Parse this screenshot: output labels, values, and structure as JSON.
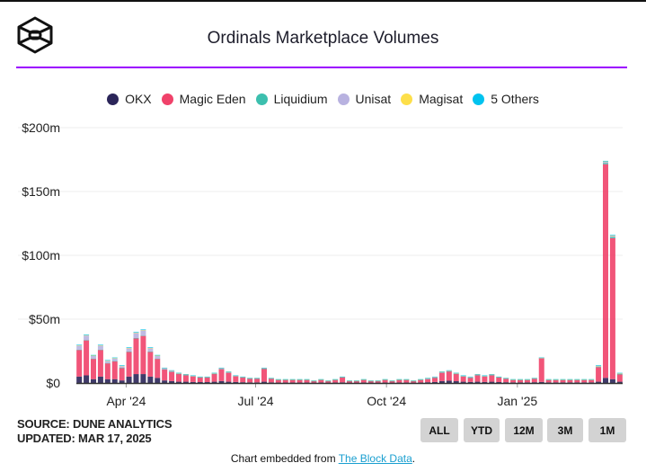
{
  "header": {
    "title": "Ordinals Marketplace Volumes",
    "logo_icon": "the-block-cube-logo",
    "accent_rule_color": "#9b00ff"
  },
  "legend": [
    {
      "label": "OKX",
      "color": "#2b2559"
    },
    {
      "label": "Magic Eden",
      "color": "#f0426a"
    },
    {
      "label": "Liquidium",
      "color": "#3cbfae"
    },
    {
      "label": "Unisat",
      "color": "#b8b2e0"
    },
    {
      "label": "Magisat",
      "color": "#fddf4a"
    },
    {
      "label": "5 Others",
      "color": "#00c3ef"
    }
  ],
  "source": {
    "line1": "SOURCE: DUNE ANALYTICS",
    "line2": "UPDATED: MAR 17, 2025"
  },
  "range_buttons": [
    "ALL",
    "YTD",
    "12M",
    "3M",
    "1M"
  ],
  "footer": {
    "prefix": "Chart embedded from ",
    "link": "The Block Data",
    "suffix": "."
  },
  "chart_data": {
    "type": "bar",
    "stacked": true,
    "title": "Ordinals Marketplace Volumes",
    "xlabel": "",
    "ylabel": "",
    "ylim": [
      0,
      200
    ],
    "y_unit": "$m",
    "y_ticks": [
      {
        "value": 0,
        "label": "$0"
      },
      {
        "value": 50,
        "label": "$50m"
      },
      {
        "value": 100,
        "label": "$100m"
      },
      {
        "value": 150,
        "label": "$150m"
      },
      {
        "value": 200,
        "label": "$200m"
      }
    ],
    "x_ticks": [
      {
        "date": "2024-04-01",
        "label": "Apr '24"
      },
      {
        "date": "2024-07-01",
        "label": "Jul '24"
      },
      {
        "date": "2024-10-01",
        "label": "Oct '24"
      },
      {
        "date": "2025-01-01",
        "label": "Jan '25"
      }
    ],
    "xlim": [
      "2024-02-26",
      "2025-03-16"
    ],
    "grid": true,
    "legend_position": "top",
    "x": [
      "2024-02-28",
      "2024-03-04",
      "2024-03-09",
      "2024-03-14",
      "2024-03-19",
      "2024-03-24",
      "2024-03-29",
      "2024-04-03",
      "2024-04-08",
      "2024-04-13",
      "2024-04-18",
      "2024-04-23",
      "2024-04-28",
      "2024-05-03",
      "2024-05-08",
      "2024-05-13",
      "2024-05-18",
      "2024-05-23",
      "2024-05-28",
      "2024-06-02",
      "2024-06-07",
      "2024-06-12",
      "2024-06-17",
      "2024-06-22",
      "2024-06-27",
      "2024-07-02",
      "2024-07-07",
      "2024-07-12",
      "2024-07-17",
      "2024-07-22",
      "2024-07-27",
      "2024-08-01",
      "2024-08-06",
      "2024-08-11",
      "2024-08-16",
      "2024-08-21",
      "2024-08-26",
      "2024-08-31",
      "2024-09-05",
      "2024-09-10",
      "2024-09-15",
      "2024-09-20",
      "2024-09-25",
      "2024-09-30",
      "2024-10-05",
      "2024-10-10",
      "2024-10-15",
      "2024-10-20",
      "2024-10-25",
      "2024-10-30",
      "2024-11-04",
      "2024-11-09",
      "2024-11-14",
      "2024-11-19",
      "2024-11-24",
      "2024-11-29",
      "2024-12-04",
      "2024-12-09",
      "2024-12-14",
      "2024-12-19",
      "2024-12-24",
      "2024-12-29",
      "2025-01-03",
      "2025-01-08",
      "2025-01-13",
      "2025-01-18",
      "2025-01-23",
      "2025-01-28",
      "2025-02-02",
      "2025-02-07",
      "2025-02-12",
      "2025-02-17",
      "2025-02-22",
      "2025-02-27",
      "2025-03-04",
      "2025-03-09",
      "2025-03-14"
    ],
    "series": [
      {
        "name": "OKX",
        "color": "#2b2559",
        "values": [
          5,
          6,
          3,
          5,
          3,
          3,
          2,
          5,
          7,
          7,
          5,
          4,
          2,
          1.5,
          1,
          1,
          0.8,
          0.7,
          0.7,
          1,
          1.5,
          1,
          0.8,
          0.6,
          0.5,
          0.5,
          1,
          0.5,
          0.4,
          0.4,
          0.4,
          0.4,
          0.4,
          0.3,
          0.4,
          0.3,
          0.4,
          0.5,
          0.3,
          0.3,
          0.4,
          0.3,
          0.3,
          0.4,
          0.3,
          0.4,
          0.4,
          0.3,
          0.4,
          0.6,
          0.8,
          1.5,
          1.8,
          1.4,
          1,
          0.8,
          1,
          0.8,
          1,
          0.7,
          0.6,
          0.5,
          0.5,
          0.5,
          0.6,
          0.8,
          0.5,
          0.5,
          0.5,
          0.5,
          0.5,
          0.5,
          0.5,
          1,
          4,
          3,
          1
        ]
      },
      {
        "name": "Magic Eden",
        "color": "#f0426a",
        "values": [
          20.9,
          27.4,
          15.9,
          20.9,
          12.4,
          13.9,
          9.7,
          19.4,
          27.9,
          29.9,
          19.4,
          14.9,
          8.6,
          7.3,
          6.1,
          5.1,
          4.4,
          3.6,
          3.6,
          6.1,
          9.4,
          7.1,
          4.5,
          3.7,
          2.9,
          2.9,
          10.1,
          2.9,
          2.0,
          2.0,
          2.0,
          2.0,
          2.0,
          1.1,
          2.0,
          1.1,
          2.0,
          3.9,
          1.1,
          1.1,
          2.0,
          1.1,
          1.1,
          2.0,
          1.1,
          2.0,
          2.0,
          1.1,
          2.0,
          2.5,
          3.3,
          6.6,
          7.3,
          5.7,
          4.1,
          3.3,
          5.1,
          4.3,
          5.1,
          3.7,
          2.7,
          1.8,
          1.8,
          1.8,
          2.7,
          18.5,
          1.8,
          1.8,
          1.8,
          1.8,
          1.8,
          1.8,
          1.8,
          11.4,
          167.4,
          110.4,
          5.7
        ]
      },
      {
        "name": "Liquidium",
        "color": "#3cbfae",
        "values": [
          0.3,
          0.3,
          0.3,
          0.3,
          0.3,
          0.3,
          0.3,
          0.3,
          0.3,
          0.3,
          0.3,
          0.3,
          0.2,
          0.2,
          0.2,
          0.2,
          0.2,
          0.2,
          0.2,
          0.2,
          0.2,
          0.2,
          0.2,
          0.2,
          0.2,
          0.2,
          0.2,
          0.2,
          0.2,
          0.2,
          0.2,
          0.2,
          0.2,
          0.2,
          0.2,
          0.2,
          0.2,
          0.2,
          0.2,
          0.2,
          0.2,
          0.2,
          0.2,
          0.2,
          0.2,
          0.2,
          0.2,
          0.2,
          0.2,
          0.2,
          0.2,
          0.2,
          0.2,
          0.2,
          0.2,
          0.2,
          0.2,
          0.2,
          0.2,
          0.2,
          0.3,
          0.3,
          0.3,
          0.3,
          0.3,
          0.3,
          0.3,
          0.3,
          0.3,
          0.3,
          0.3,
          0.3,
          0.3,
          0.5,
          1,
          1,
          0.4
        ]
      },
      {
        "name": "Unisat",
        "color": "#b8b2e0",
        "values": [
          3,
          3.5,
          2,
          3,
          1.5,
          2,
          1.2,
          2.5,
          4,
          4,
          2.5,
          2,
          1,
          0.8,
          0.5,
          0.5,
          0.4,
          0.3,
          0.3,
          0.5,
          0.7,
          0.5,
          0.3,
          0.3,
          0.2,
          0.2,
          0.5,
          0.2,
          0.2,
          0.2,
          0.2,
          0.2,
          0.2,
          0.2,
          0.2,
          0.2,
          0.2,
          0.2,
          0.2,
          0.2,
          0.2,
          0.2,
          0.2,
          0.2,
          0.2,
          0.2,
          0.2,
          0.2,
          0.2,
          0.5,
          0.5,
          0.5,
          0.5,
          0.5,
          0.5,
          0.5,
          0.5,
          0.5,
          0.5,
          0.2,
          0.2,
          0.2,
          0.2,
          0.2,
          0.2,
          0.2,
          0.2,
          0.2,
          0.2,
          0.2,
          0.2,
          0.2,
          0.2,
          0.5,
          1,
          1,
          0.3
        ]
      },
      {
        "name": "Magisat",
        "color": "#fddf4a",
        "values": [
          0.3,
          0.3,
          0.3,
          0.3,
          0.3,
          0.3,
          0.3,
          0.3,
          0.3,
          0.3,
          0.3,
          0.3,
          0.1,
          0.1,
          0.1,
          0.1,
          0.1,
          0.1,
          0.1,
          0.1,
          0.1,
          0.1,
          0.1,
          0.1,
          0.1,
          0.1,
          0.1,
          0.1,
          0.1,
          0.1,
          0.1,
          0.1,
          0.1,
          0.1,
          0.1,
          0.1,
          0.1,
          0.1,
          0.1,
          0.1,
          0.1,
          0.1,
          0.1,
          0.1,
          0.1,
          0.1,
          0.1,
          0.1,
          0.1,
          0.1,
          0.1,
          0.1,
          0.1,
          0.1,
          0.1,
          0.1,
          0.1,
          0.1,
          0.1,
          0.1,
          0.1,
          0.1,
          0.1,
          0.1,
          0.1,
          0.1,
          0.1,
          0.1,
          0.1,
          0.1,
          0.1,
          0.1,
          0.1,
          0.1,
          0.1,
          0.1,
          0.1
        ]
      },
      {
        "name": "5 Others",
        "color": "#00c3ef",
        "values": [
          0.5,
          0.5,
          0.5,
          0.5,
          0.5,
          0.5,
          0.5,
          0.5,
          0.5,
          0.5,
          0.5,
          0.5,
          0.1,
          0.1,
          0.1,
          0.1,
          0.1,
          0.1,
          0.1,
          0.1,
          0.1,
          0.1,
          0.1,
          0.1,
          0.1,
          0.1,
          0.1,
          0.1,
          0.1,
          0.1,
          0.1,
          0.1,
          0.1,
          0.1,
          0.1,
          0.1,
          0.1,
          0.1,
          0.1,
          0.1,
          0.1,
          0.1,
          0.1,
          0.1,
          0.1,
          0.1,
          0.1,
          0.1,
          0.1,
          0.1,
          0.1,
          0.1,
          0.1,
          0.1,
          0.1,
          0.1,
          0.1,
          0.1,
          0.1,
          0.1,
          0.1,
          0.1,
          0.1,
          0.1,
          0.1,
          0.1,
          0.1,
          0.1,
          0.1,
          0.1,
          0.1,
          0.1,
          0.1,
          0.5,
          0.5,
          0.5,
          0.5
        ]
      }
    ]
  }
}
